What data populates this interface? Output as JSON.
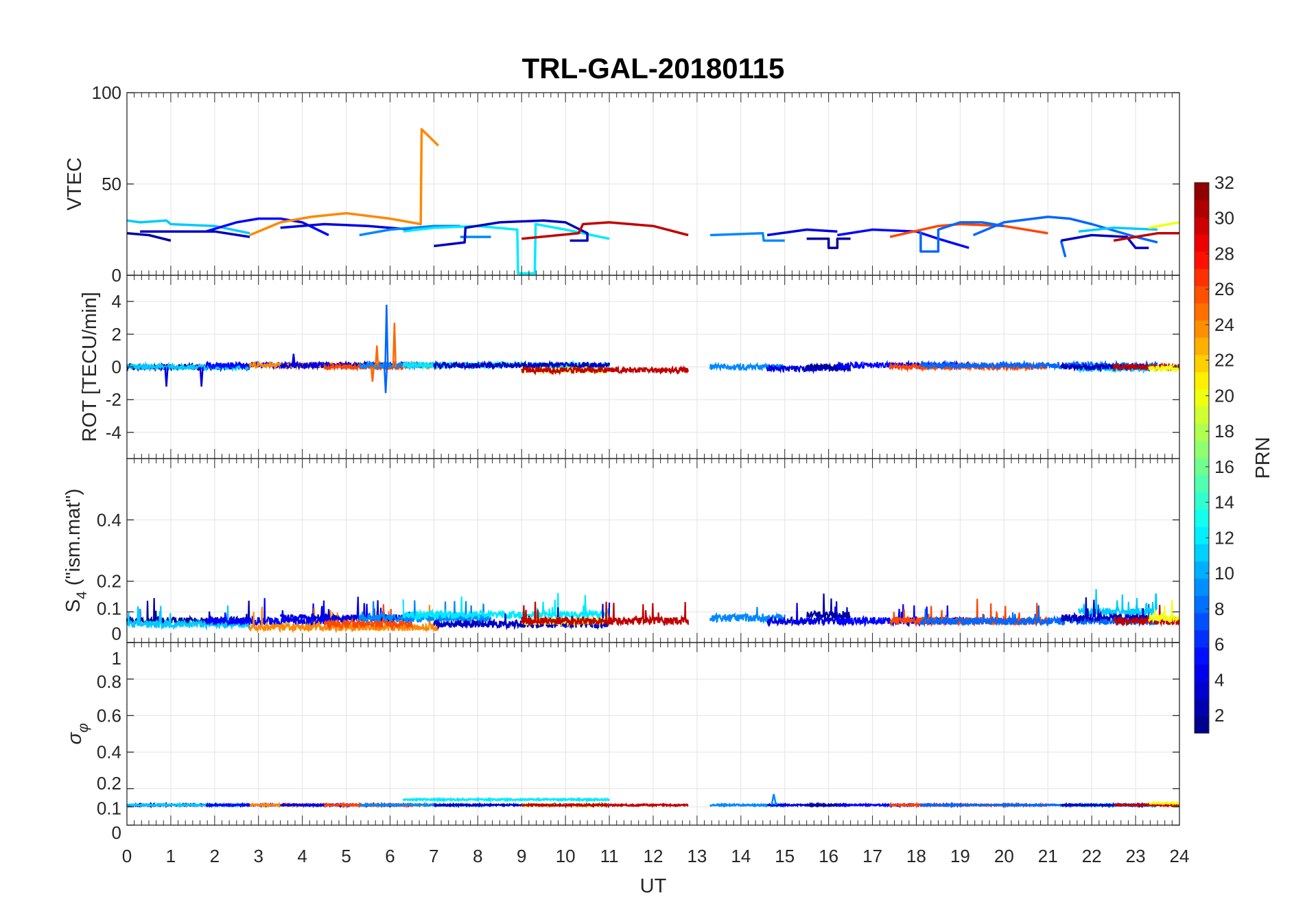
{
  "chart_data": {
    "type": "line",
    "title": "TRL-GAL-20180115",
    "xlabel": "UT",
    "xlim": [
      0,
      24
    ],
    "xticks": [
      "0",
      "1",
      "2",
      "3",
      "4",
      "5",
      "6",
      "7",
      "8",
      "9",
      "10",
      "11",
      "12",
      "13",
      "14",
      "15",
      "16",
      "17",
      "18",
      "19",
      "20",
      "21",
      "22",
      "23",
      "24"
    ],
    "grid": true,
    "colorbar": {
      "label": "PRN",
      "range": [
        1,
        32
      ],
      "colormap": "jet",
      "ticks": [
        "2",
        "4",
        "6",
        "8",
        "10",
        "12",
        "14",
        "16",
        "18",
        "20",
        "22",
        "24",
        "26",
        "28",
        "30",
        "32"
      ]
    },
    "panels": [
      {
        "id": "vtec",
        "ylabel": "VTEC",
        "ylim": [
          0,
          100
        ],
        "yticks": [
          0,
          50,
          100
        ],
        "yticklabels": [
          "0",
          "50",
          "100"
        ]
      },
      {
        "id": "rot",
        "ylabel": "ROT [TECU/min]",
        "ylim": [
          -5.6,
          5.6
        ],
        "yticks": [
          -4,
          -2,
          0,
          2,
          4
        ],
        "yticklabels": [
          "-4",
          "-2",
          "0",
          "2",
          "4"
        ]
      },
      {
        "id": "s4",
        "ylabel_main": "S",
        "ylabel_sub": "4",
        "ylabel_rest": " (\"ism.mat\")",
        "ylim": [
          0,
          0.6
        ],
        "yticks": [
          0,
          0.1,
          0.2,
          0.4
        ],
        "yticklabels": [
          "0",
          "0.1",
          "0.2",
          "0.4"
        ]
      },
      {
        "id": "sigma",
        "ylabel_main": "σ",
        "ylabel_sub": "φ",
        "ylim": [
          0,
          1
        ],
        "yticks": [
          0,
          0.1,
          0.2,
          0.4,
          0.6,
          0.8,
          1
        ],
        "yticklabels": [
          "0",
          "0.1",
          "0.2",
          "0.4",
          "0.6",
          "0.8",
          "1"
        ]
      }
    ],
    "vtec_series": [
      {
        "prn": 11,
        "points": [
          [
            0,
            30
          ],
          [
            0.3,
            29
          ],
          [
            0.9,
            30
          ],
          [
            1,
            28
          ],
          [
            2,
            27
          ],
          [
            2.8,
            23
          ]
        ]
      },
      {
        "prn": 2,
        "points": [
          [
            0,
            23
          ],
          [
            0.5,
            22
          ],
          [
            1,
            19
          ]
        ]
      },
      {
        "prn": 3,
        "points": [
          [
            0.3,
            24
          ],
          [
            1.2,
            24
          ],
          [
            2,
            24
          ],
          [
            2.8,
            21
          ]
        ]
      },
      {
        "prn": 5,
        "points": [
          [
            1.8,
            24
          ],
          [
            2.5,
            29
          ],
          [
            3,
            31
          ],
          [
            3.5,
            31
          ],
          [
            4,
            29
          ],
          [
            4.6,
            22
          ]
        ]
      },
      {
        "prn": 24,
        "points": [
          [
            2.8,
            22
          ],
          [
            3.5,
            29
          ],
          [
            4.2,
            32
          ],
          [
            5,
            34
          ],
          [
            6,
            31
          ],
          [
            6.7,
            28
          ],
          [
            6.72,
            80
          ],
          [
            7.1,
            71
          ]
        ]
      },
      {
        "prn": 4,
        "points": [
          [
            3.5,
            26
          ],
          [
            4.5,
            28
          ],
          [
            5.5,
            27
          ],
          [
            6.5,
            25
          ]
        ]
      },
      {
        "prn": 9,
        "points": [
          [
            5.3,
            22
          ],
          [
            6,
            25
          ],
          [
            7,
            27
          ],
          [
            7.6,
            27
          ]
        ]
      },
      {
        "prn": 9,
        "points": [
          [
            7.6,
            21
          ],
          [
            8.3,
            21
          ]
        ]
      },
      {
        "prn": 12,
        "points": [
          [
            6.3,
            24
          ],
          [
            7,
            26
          ],
          [
            8,
            27
          ],
          [
            8.9,
            25
          ],
          [
            8.92,
            1
          ],
          [
            9.3,
            1
          ],
          [
            9.32,
            28
          ],
          [
            10,
            25
          ],
          [
            11,
            20
          ]
        ]
      },
      {
        "prn": 3,
        "points": [
          [
            7,
            16
          ],
          [
            7.7,
            18
          ],
          [
            7.72,
            26
          ],
          [
            8.5,
            29
          ],
          [
            9.5,
            30
          ],
          [
            10,
            29
          ],
          [
            10.5,
            23
          ],
          [
            10.5,
            19
          ],
          [
            10.1,
            19
          ]
        ]
      },
      {
        "prn": 30,
        "points": [
          [
            9,
            20
          ],
          [
            10.3,
            23
          ],
          [
            10.4,
            28
          ],
          [
            11,
            29
          ],
          [
            12,
            27
          ],
          [
            12.8,
            22
          ]
        ]
      },
      {
        "prn": 9,
        "points": [
          [
            13.3,
            22
          ],
          [
            14.5,
            23
          ],
          [
            14.52,
            19
          ],
          [
            15,
            19
          ]
        ]
      },
      {
        "prn": 4,
        "points": [
          [
            14.6,
            22
          ],
          [
            15.5,
            25
          ],
          [
            16.2,
            24
          ]
        ]
      },
      {
        "prn": 2,
        "points": [
          [
            15.5,
            20
          ],
          [
            16,
            20
          ],
          [
            16,
            15
          ],
          [
            16.2,
            15
          ],
          [
            16.2,
            20
          ],
          [
            16.5,
            20
          ]
        ]
      },
      {
        "prn": 5,
        "points": [
          [
            16.2,
            22
          ],
          [
            17,
            25
          ],
          [
            18,
            24
          ],
          [
            18.5,
            20
          ],
          [
            19.2,
            15
          ]
        ]
      },
      {
        "prn": 26,
        "points": [
          [
            17.4,
            21
          ],
          [
            18.5,
            27
          ],
          [
            19,
            28
          ],
          [
            20,
            27
          ],
          [
            21,
            23
          ]
        ]
      },
      {
        "prn": 8,
        "points": [
          [
            18.1,
            24
          ],
          [
            18.1,
            13
          ],
          [
            18.5,
            13
          ],
          [
            18.5,
            25
          ],
          [
            19,
            29
          ],
          [
            19.5,
            29
          ],
          [
            20,
            27
          ]
        ]
      },
      {
        "prn": 8,
        "points": [
          [
            19.3,
            22
          ],
          [
            20,
            29
          ],
          [
            21,
            32
          ],
          [
            21.5,
            31
          ],
          [
            22,
            28
          ],
          [
            23,
            21
          ],
          [
            23.5,
            18
          ]
        ]
      },
      {
        "prn": 8,
        "points": [
          [
            21.3,
            19
          ],
          [
            21.4,
            10
          ]
        ]
      },
      {
        "prn": 11,
        "points": [
          [
            21.7,
            24
          ],
          [
            22.5,
            26
          ],
          [
            23.5,
            25
          ]
        ]
      },
      {
        "prn": 3,
        "points": [
          [
            21.3,
            19
          ],
          [
            22,
            22
          ],
          [
            22.8,
            21
          ],
          [
            23,
            15
          ],
          [
            23.3,
            15
          ]
        ]
      },
      {
        "prn": 30,
        "points": [
          [
            22.5,
            19
          ],
          [
            23.5,
            23
          ],
          [
            24,
            23
          ]
        ]
      },
      {
        "prn": 20,
        "points": [
          [
            23.3,
            26
          ],
          [
            24,
            29
          ]
        ]
      }
    ],
    "noise_series": [
      {
        "prn": 2,
        "range": [
          0,
          2.8
        ],
        "rot_level": 0,
        "s4_level": 0.07,
        "sigma_level": 0.11
      },
      {
        "prn": 11,
        "range": [
          0,
          2.8
        ],
        "rot_level": 0,
        "s4_level": 0.06,
        "sigma_level": 0.11
      },
      {
        "prn": 5,
        "range": [
          1.8,
          4.6
        ],
        "rot_level": 0.1,
        "s4_level": 0.07,
        "sigma_level": 0.11
      },
      {
        "prn": 24,
        "range": [
          2.8,
          7.1
        ],
        "rot_level": 0.1,
        "s4_level": 0.05,
        "sigma_level": 0.11
      },
      {
        "prn": 4,
        "range": [
          3.5,
          6.5
        ],
        "rot_level": 0.1,
        "s4_level": 0.08,
        "sigma_level": 0.11
      },
      {
        "prn": 26,
        "range": [
          4.5,
          6.5
        ],
        "rot_level": 0.0,
        "s4_level": 0.06,
        "sigma_level": 0.11
      },
      {
        "prn": 9,
        "range": [
          5.3,
          8.3
        ],
        "rot_level": 0.1,
        "s4_level": 0.08,
        "sigma_level": 0.11
      },
      {
        "prn": 12,
        "range": [
          6.3,
          11
        ],
        "rot_level": 0.1,
        "s4_level": 0.09,
        "sigma_level": 0.14
      },
      {
        "prn": 3,
        "range": [
          7,
          11
        ],
        "rot_level": 0.1,
        "s4_level": 0.06,
        "sigma_level": 0.11
      },
      {
        "prn": 20,
        "range": [
          9,
          11
        ],
        "rot_level": -0.2,
        "s4_level": 0.07,
        "sigma_level": 0.11
      },
      {
        "prn": 30,
        "range": [
          9,
          12.8
        ],
        "rot_level": -0.2,
        "s4_level": 0.07,
        "sigma_level": 0.11
      },
      {
        "prn": 9,
        "range": [
          13.3,
          15
        ],
        "rot_level": 0,
        "s4_level": 0.08,
        "sigma_level": 0.11
      },
      {
        "prn": 4,
        "range": [
          14.6,
          16.5
        ],
        "rot_level": -0.1,
        "s4_level": 0.07,
        "sigma_level": 0.11
      },
      {
        "prn": 2,
        "range": [
          15.5,
          16.5
        ],
        "rot_level": 0,
        "s4_level": 0.09,
        "sigma_level": 0.11
      },
      {
        "prn": 5,
        "range": [
          16.2,
          19.2
        ],
        "rot_level": 0.1,
        "s4_level": 0.07,
        "sigma_level": 0.11
      },
      {
        "prn": 26,
        "range": [
          17.4,
          21
        ],
        "rot_level": 0,
        "s4_level": 0.07,
        "sigma_level": 0.11
      },
      {
        "prn": 8,
        "range": [
          18.1,
          23.5
        ],
        "rot_level": 0.1,
        "s4_level": 0.07,
        "sigma_level": 0.11
      },
      {
        "prn": 11,
        "range": [
          21.7,
          23.5
        ],
        "rot_level": -0.1,
        "s4_level": 0.1,
        "sigma_level": 0.11
      },
      {
        "prn": 3,
        "range": [
          21.3,
          23.3
        ],
        "rot_level": 0,
        "s4_level": 0.08,
        "sigma_level": 0.11
      },
      {
        "prn": 30,
        "range": [
          22.5,
          24
        ],
        "rot_level": 0,
        "s4_level": 0.07,
        "sigma_level": 0.11
      },
      {
        "prn": 20,
        "range": [
          23.3,
          24
        ],
        "rot_level": -0.1,
        "s4_level": 0.08,
        "sigma_level": 0.12
      }
    ],
    "rot_spikes": [
      {
        "prn": 8,
        "t": 5.92,
        "value": 3.8
      },
      {
        "prn": 8,
        "t": 5.9,
        "value": -1.6
      },
      {
        "prn": 25,
        "t": 6.1,
        "value": 2.7
      },
      {
        "prn": 25,
        "t": 5.7,
        "value": 1.3
      },
      {
        "prn": 25,
        "t": 5.6,
        "value": -0.9
      },
      {
        "prn": 4,
        "t": 0.9,
        "value": -1.2
      },
      {
        "prn": 4,
        "t": 1.7,
        "value": -1.2
      },
      {
        "prn": 4,
        "t": 3.8,
        "value": 0.8
      }
    ],
    "sigma_spikes": [
      {
        "prn": 9,
        "t": 14.75,
        "value": 0.17
      }
    ]
  }
}
